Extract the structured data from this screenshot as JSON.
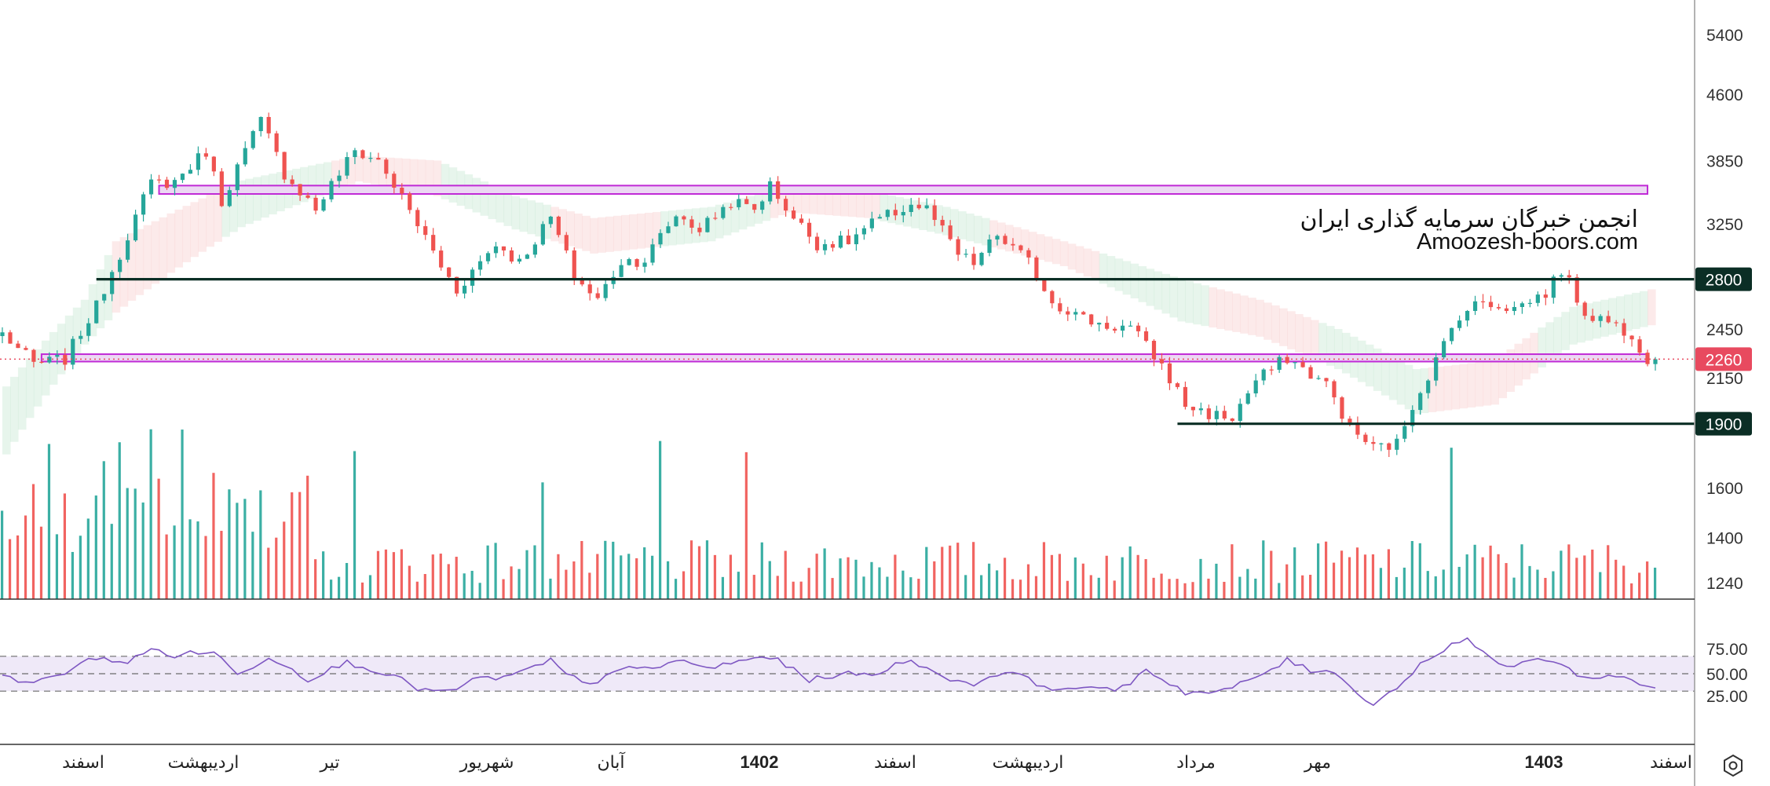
{
  "watermark": {
    "line1": "انجمن خبرگان سرمایه گذاری ایران",
    "line2": "Amoozesh-boors.com"
  },
  "chart_data": {
    "type": "candlestick",
    "price_axis": {
      "ticks": [
        "5400",
        "4600",
        "3850",
        "3250",
        "2450",
        "2150",
        "1600",
        "1400",
        "1240"
      ]
    },
    "price_badges": [
      {
        "label": "2800",
        "value": 2800,
        "color": "#0b2e25"
      },
      {
        "label": "2260",
        "value": 2260,
        "color": "#e84a5f"
      },
      {
        "label": "1900",
        "value": 1900,
        "color": "#0b2e25"
      }
    ],
    "support_resistance": [
      {
        "value": 2800,
        "from_index": 12,
        "to_index": 220,
        "color": "#0b2e25"
      },
      {
        "value": 1900,
        "from_index": 150,
        "to_index": 220,
        "color": "#0b2e25"
      }
    ],
    "zones": [
      {
        "low": 3520,
        "high": 3600,
        "from_index": 20,
        "to_index": 210,
        "color": "#c02ad6"
      },
      {
        "low": 2245,
        "high": 2290,
        "from_index": 5,
        "to_index": 210,
        "color": "#c02ad6"
      }
    ],
    "last_price": 2260,
    "rsi": {
      "levels": [
        75,
        50,
        25
      ],
      "level_labels": [
        "75.00",
        "50.00",
        "25.00"
      ],
      "band": [
        30,
        70
      ],
      "color": "#7e57c2"
    },
    "time_axis": [
      "اسفند",
      "اردیبهشت",
      "تیر",
      "شهریور",
      "آبان",
      "1402",
      "اسفند",
      "اردیبهشت",
      "مرداد",
      "مهر",
      "1403",
      "اسفند"
    ],
    "colors": {
      "up": "#26a69a",
      "down": "#ef5350"
    },
    "close_anchors": [
      [
        0,
        2420
      ],
      [
        4,
        2230
      ],
      [
        8,
        2260
      ],
      [
        12,
        2600
      ],
      [
        15,
        3000
      ],
      [
        19,
        3620
      ],
      [
        22,
        3640
      ],
      [
        26,
        3950
      ],
      [
        28,
        3450
      ],
      [
        33,
        4280
      ],
      [
        36,
        3720
      ],
      [
        40,
        3380
      ],
      [
        45,
        3950
      ],
      [
        48,
        3850
      ],
      [
        52,
        3360
      ],
      [
        56,
        2900
      ],
      [
        58,
        2720
      ],
      [
        63,
        3080
      ],
      [
        66,
        2930
      ],
      [
        70,
        3300
      ],
      [
        73,
        2820
      ],
      [
        76,
        2650
      ],
      [
        79,
        2940
      ],
      [
        82,
        2950
      ],
      [
        86,
        3330
      ],
      [
        89,
        3200
      ],
      [
        93,
        3450
      ],
      [
        96,
        3380
      ],
      [
        98,
        3600
      ],
      [
        101,
        3300
      ],
      [
        104,
        3080
      ],
      [
        108,
        3100
      ],
      [
        111,
        3250
      ],
      [
        116,
        3420
      ],
      [
        118,
        3380
      ],
      [
        122,
        2990
      ],
      [
        124,
        2920
      ],
      [
        127,
        3150
      ],
      [
        131,
        2930
      ],
      [
        134,
        2640
      ],
      [
        138,
        2520
      ],
      [
        141,
        2470
      ],
      [
        144,
        2460
      ],
      [
        146,
        2340
      ],
      [
        148,
        2220
      ],
      [
        151,
        2000
      ],
      [
        154,
        1950
      ],
      [
        157,
        1930
      ],
      [
        160,
        2130
      ],
      [
        164,
        2270
      ],
      [
        166,
        2200
      ],
      [
        169,
        2110
      ],
      [
        172,
        1880
      ],
      [
        175,
        1780
      ],
      [
        178,
        1800
      ],
      [
        180,
        2000
      ],
      [
        183,
        2250
      ],
      [
        186,
        2550
      ],
      [
        189,
        2640
      ],
      [
        193,
        2590
      ],
      [
        197,
        2700
      ],
      [
        199,
        2870
      ],
      [
        202,
        2560
      ],
      [
        205,
        2500
      ],
      [
        208,
        2420
      ],
      [
        210,
        2260
      ]
    ],
    "rsi_anchors": [
      [
        0,
        49
      ],
      [
        4,
        38
      ],
      [
        8,
        52
      ],
      [
        12,
        69
      ],
      [
        16,
        63
      ],
      [
        19,
        78
      ],
      [
        22,
        71
      ],
      [
        27,
        76
      ],
      [
        30,
        48
      ],
      [
        34,
        70
      ],
      [
        37,
        55
      ],
      [
        39,
        44
      ],
      [
        44,
        63
      ],
      [
        47,
        56
      ],
      [
        50,
        47
      ],
      [
        53,
        33
      ],
      [
        57,
        28
      ],
      [
        60,
        43
      ],
      [
        65,
        47
      ],
      [
        70,
        65
      ],
      [
        72,
        49
      ],
      [
        75,
        36
      ],
      [
        78,
        55
      ],
      [
        83,
        55
      ],
      [
        86,
        66
      ],
      [
        90,
        56
      ],
      [
        95,
        66
      ],
      [
        98,
        70
      ],
      [
        103,
        43
      ],
      [
        107,
        50
      ],
      [
        111,
        48
      ],
      [
        116,
        68
      ],
      [
        119,
        49
      ],
      [
        124,
        38
      ],
      [
        128,
        54
      ],
      [
        132,
        39
      ],
      [
        136,
        30
      ],
      [
        139,
        38
      ],
      [
        142,
        27
      ],
      [
        146,
        55
      ],
      [
        151,
        29
      ],
      [
        155,
        28
      ],
      [
        159,
        41
      ],
      [
        164,
        65
      ],
      [
        167,
        54
      ],
      [
        170,
        54
      ],
      [
        172,
        34
      ],
      [
        175,
        16
      ],
      [
        178,
        34
      ],
      [
        181,
        60
      ],
      [
        184,
        79
      ],
      [
        187,
        91
      ],
      [
        190,
        65
      ],
      [
        193,
        57
      ],
      [
        196,
        70
      ],
      [
        199,
        60
      ],
      [
        202,
        44
      ],
      [
        204,
        48
      ],
      [
        208,
        44
      ],
      [
        210,
        35
      ]
    ],
    "cloud_anchors": [
      [
        0,
        1750,
        2100
      ],
      [
        10,
        2350,
        2650
      ],
      [
        14,
        2560,
        3100
      ],
      [
        30,
        3220,
        3650
      ],
      [
        45,
        3640,
        3900
      ],
      [
        55,
        3500,
        3850
      ],
      [
        65,
        3200,
        3500
      ],
      [
        75,
        3000,
        3300
      ],
      [
        90,
        3100,
        3400
      ],
      [
        100,
        3350,
        3600
      ],
      [
        110,
        3300,
        3550
      ],
      [
        120,
        3150,
        3400
      ],
      [
        135,
        2900,
        3100
      ],
      [
        150,
        2500,
        2800
      ],
      [
        160,
        2400,
        2650
      ],
      [
        170,
        2200,
        2450
      ],
      [
        180,
        1950,
        2200
      ],
      [
        190,
        2000,
        2250
      ],
      [
        200,
        2350,
        2600
      ],
      [
        212,
        2500,
        2750
      ]
    ]
  }
}
